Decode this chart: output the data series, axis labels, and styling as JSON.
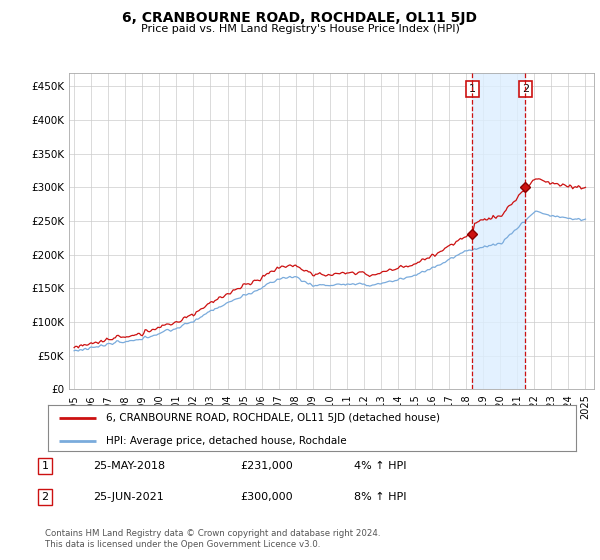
{
  "title": "6, CRANBOURNE ROAD, ROCHDALE, OL11 5JD",
  "subtitle": "Price paid vs. HM Land Registry's House Price Index (HPI)",
  "ylabel_ticks": [
    "£0",
    "£50K",
    "£100K",
    "£150K",
    "£200K",
    "£250K",
    "£300K",
    "£350K",
    "£400K",
    "£450K"
  ],
  "ytick_values": [
    0,
    50000,
    100000,
    150000,
    200000,
    250000,
    300000,
    350000,
    400000,
    450000
  ],
  "ylim": [
    0,
    470000
  ],
  "xlim_start": 1994.7,
  "xlim_end": 2025.5,
  "hpi_color": "#7aabdc",
  "price_color": "#cc1111",
  "background_color": "#ffffff",
  "grid_color": "#cccccc",
  "shade_color": "#ddeeff",
  "marker1_x": 2018.37,
  "marker1_y": 231000,
  "marker1_label": "25-MAY-2018",
  "marker1_price": "£231,000",
  "marker1_hpi": "4% ↑ HPI",
  "marker2_x": 2021.48,
  "marker2_y": 300000,
  "marker2_label": "25-JUN-2021",
  "marker2_price": "£300,000",
  "marker2_hpi": "8% ↑ HPI",
  "legend_line1": "6, CRANBOURNE ROAD, ROCHDALE, OL11 5JD (detached house)",
  "legend_line2": "HPI: Average price, detached house, Rochdale",
  "footer": "Contains HM Land Registry data © Crown copyright and database right 2024.\nThis data is licensed under the Open Government Licence v3.0.",
  "xtick_years": [
    1995,
    1996,
    1997,
    1998,
    1999,
    2000,
    2001,
    2002,
    2003,
    2004,
    2005,
    2006,
    2007,
    2008,
    2009,
    2010,
    2011,
    2012,
    2013,
    2014,
    2015,
    2016,
    2017,
    2018,
    2019,
    2020,
    2021,
    2022,
    2023,
    2024,
    2025
  ]
}
